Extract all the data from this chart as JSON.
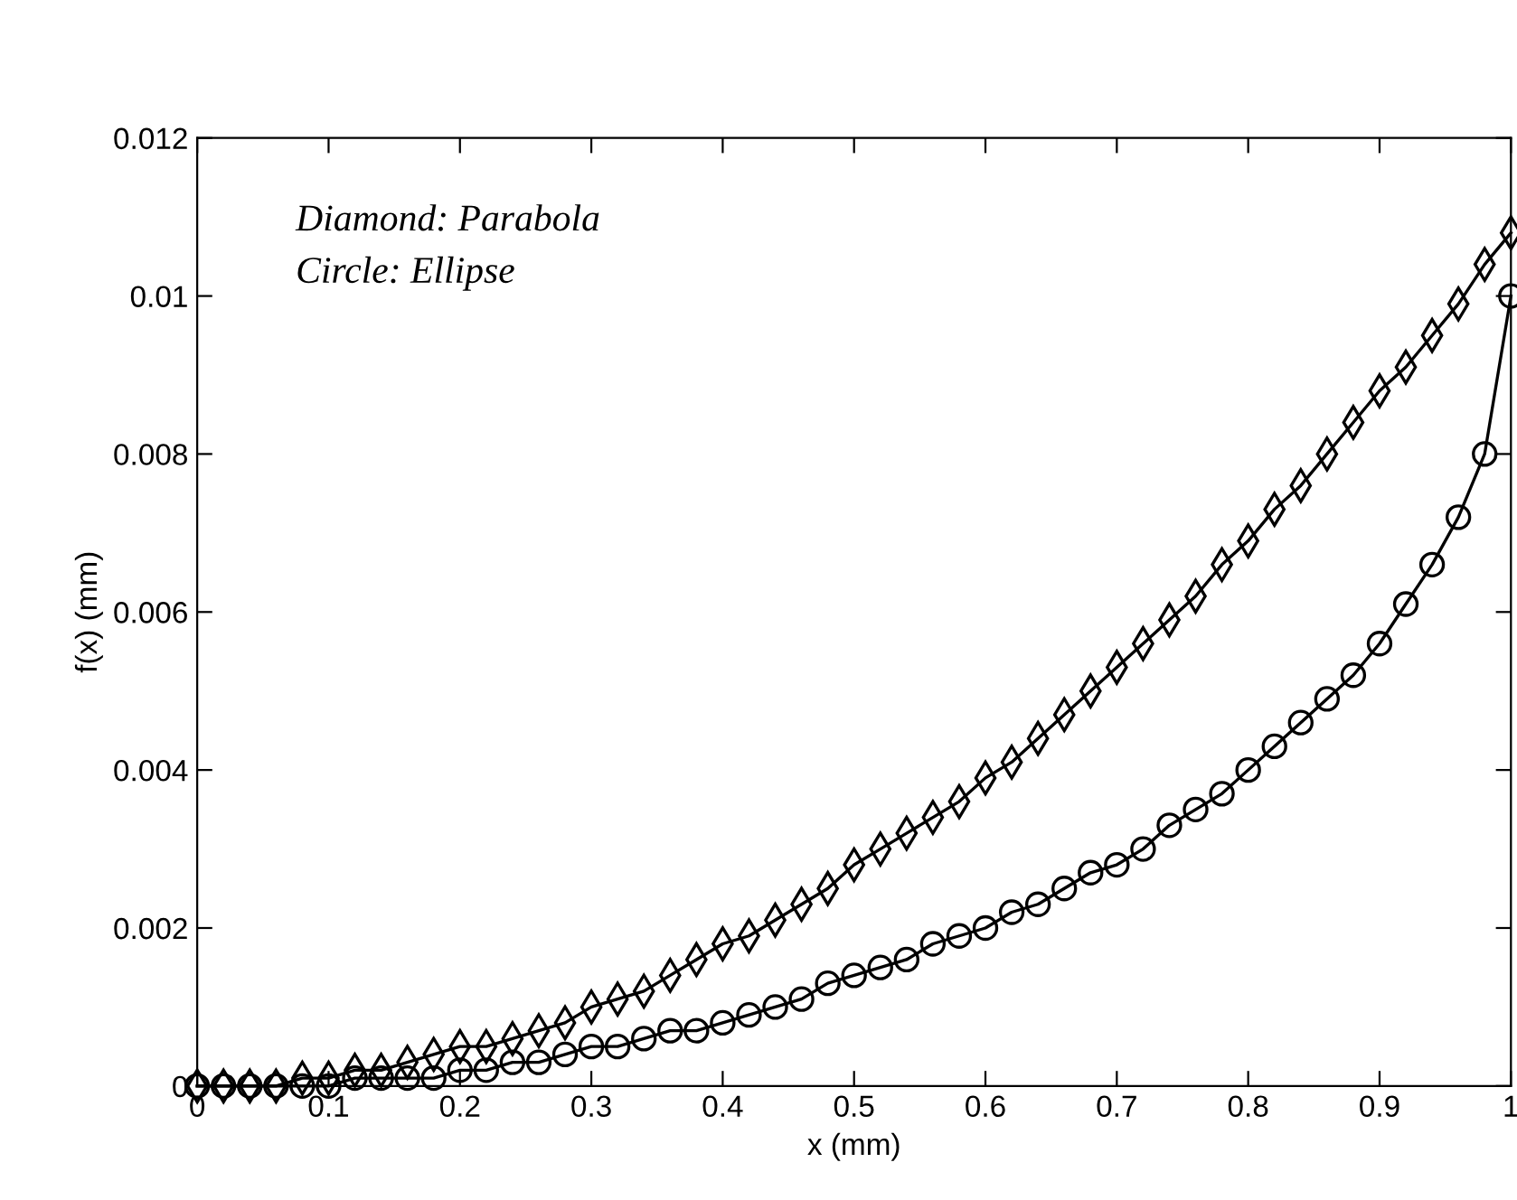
{
  "chart_data": {
    "type": "line",
    "xlabel": "x (mm)",
    "ylabel": "f(x) (mm)",
    "x": [
      0,
      0.02,
      0.04,
      0.06,
      0.08,
      0.1,
      0.12,
      0.14,
      0.16,
      0.18,
      0.2,
      0.22,
      0.24,
      0.26,
      0.28,
      0.3,
      0.32,
      0.34,
      0.36,
      0.38,
      0.4,
      0.42,
      0.44,
      0.46,
      0.48,
      0.5,
      0.52,
      0.54,
      0.56,
      0.58,
      0.6,
      0.62,
      0.64,
      0.66,
      0.68,
      0.7,
      0.72,
      0.74,
      0.76,
      0.78,
      0.8,
      0.82,
      0.84,
      0.86,
      0.88,
      0.9,
      0.92,
      0.94,
      0.96,
      0.98,
      1
    ],
    "series": [
      {
        "color": "#000000",
        "marker": "diamond",
        "values": [
          0,
          0,
          0,
          0,
          0.0001,
          0.0001,
          0.0002,
          0.0002,
          0.0003,
          0.0004,
          0.0005,
          0.0005,
          0.0006,
          0.0007,
          0.0008,
          0.001,
          0.0011,
          0.0012,
          0.0014,
          0.0016,
          0.0018,
          0.0019,
          0.0021,
          0.0023,
          0.0025,
          0.0028,
          0.003,
          0.0032,
          0.0034,
          0.0036,
          0.0039,
          0.0041,
          0.0044,
          0.0047,
          0.005,
          0.0053,
          0.0056,
          0.0059,
          0.0062,
          0.0066,
          0.0069,
          0.0073,
          0.0076,
          0.008,
          0.0084,
          0.0088,
          0.0091,
          0.0095,
          0.0099,
          0.0104,
          0.0108
        ]
      },
      {
        "color": "#000000",
        "marker": "circle",
        "values": [
          0,
          0,
          0,
          0,
          0,
          0,
          0.0001,
          0.0001,
          0.0001,
          0.0001,
          0.0002,
          0.0002,
          0.0003,
          0.0003,
          0.0004,
          0.0005,
          0.0005,
          0.0006,
          0.0007,
          0.0007,
          0.0008,
          0.0009,
          0.001,
          0.0011,
          0.0013,
          0.0014,
          0.0015,
          0.0016,
          0.0018,
          0.0019,
          0.002,
          0.0022,
          0.0023,
          0.0025,
          0.0027,
          0.0028,
          0.003,
          0.0033,
          0.0035,
          0.0037,
          0.004,
          0.0043,
          0.0046,
          0.0049,
          0.0052,
          0.0056,
          0.0061,
          0.0066,
          0.0072,
          0.008,
          0.01
        ]
      }
    ],
    "xlim": [
      0,
      1
    ],
    "xticks": [
      0,
      0.1,
      0.2,
      0.3,
      0.4,
      0.5,
      0.6,
      0.7,
      0.8,
      0.9,
      1
    ],
    "ylim": [
      0,
      0.012
    ],
    "yticks": [
      0,
      0.002,
      0.004,
      0.006,
      0.008,
      0.01,
      0.012
    ],
    "line_style": "solid",
    "annotations": [
      "Diamond: Parabola",
      "Circle: Ellipse"
    ]
  }
}
